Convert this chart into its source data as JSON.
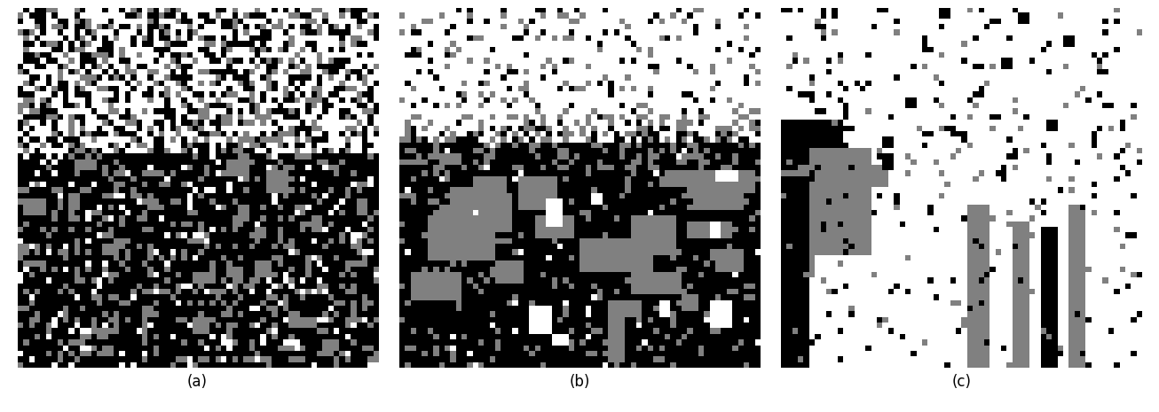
{
  "figsize": [
    13.06,
    4.65
  ],
  "dpi": 100,
  "labels": [
    "(a)",
    "(b)",
    "(c)"
  ],
  "label_fontsize": 12,
  "background_color": "#ffffff",
  "rows": 64,
  "cols": 64
}
